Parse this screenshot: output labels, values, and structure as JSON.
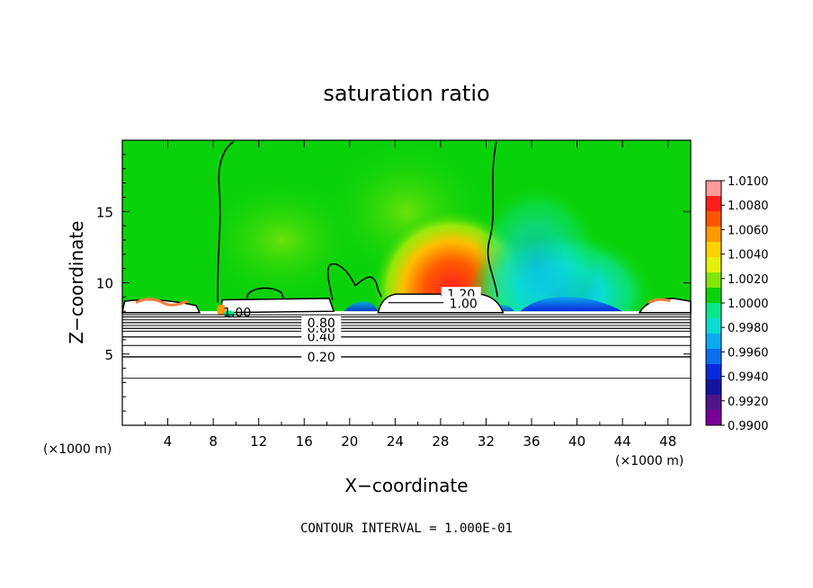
{
  "chart_data": {
    "type": "heatmap",
    "title": "saturation ratio",
    "xlabel": "X−coordinate",
    "ylabel": "Z−coordinate",
    "x_unit": "(×1000 m)",
    "z_unit": "(×1000 m)",
    "xlim": [
      0,
      50
    ],
    "zlim": [
      0,
      20
    ],
    "x_ticks": [
      4,
      8,
      12,
      16,
      20,
      24,
      28,
      32,
      36,
      40,
      44,
      48
    ],
    "z_ticks": [
      5,
      10,
      15
    ],
    "footnote": "CONTOUR INTERVAL = 1.000E-01",
    "colorbar": {
      "range": [
        0.99,
        1.01
      ],
      "tick_labels": [
        "1.0100",
        "1.0080",
        "1.0060",
        "1.0040",
        "1.0020",
        "1.0000",
        "0.9980",
        "0.9960",
        "0.9940",
        "0.9920",
        "0.9900"
      ],
      "colors": [
        "#ff9b9b",
        "#ff1e1e",
        "#ff5500",
        "#ff9900",
        "#ffd200",
        "#e6f00a",
        "#82e60a",
        "#0ad20a",
        "#0ae68c",
        "#0adcd2",
        "#0aaaf0",
        "#0a6ef0",
        "#0a28dc",
        "#1414a0",
        "#50148c",
        "#780096"
      ]
    },
    "contours": [
      {
        "value": 0.2,
        "label": "0.20",
        "z_km": 4.8
      },
      {
        "value": 0.4,
        "label": "0.40",
        "z_km": 6.2
      },
      {
        "value": 0.6,
        "label": "0.60",
        "z_km": 6.8
      },
      {
        "value": 0.8,
        "label": "0.80",
        "z_km": 7.2
      },
      {
        "value": 1.0,
        "label": "1.00"
      },
      {
        "value": 1.2,
        "label": "1.20"
      }
    ],
    "annotations": [
      "1.00"
    ]
  }
}
